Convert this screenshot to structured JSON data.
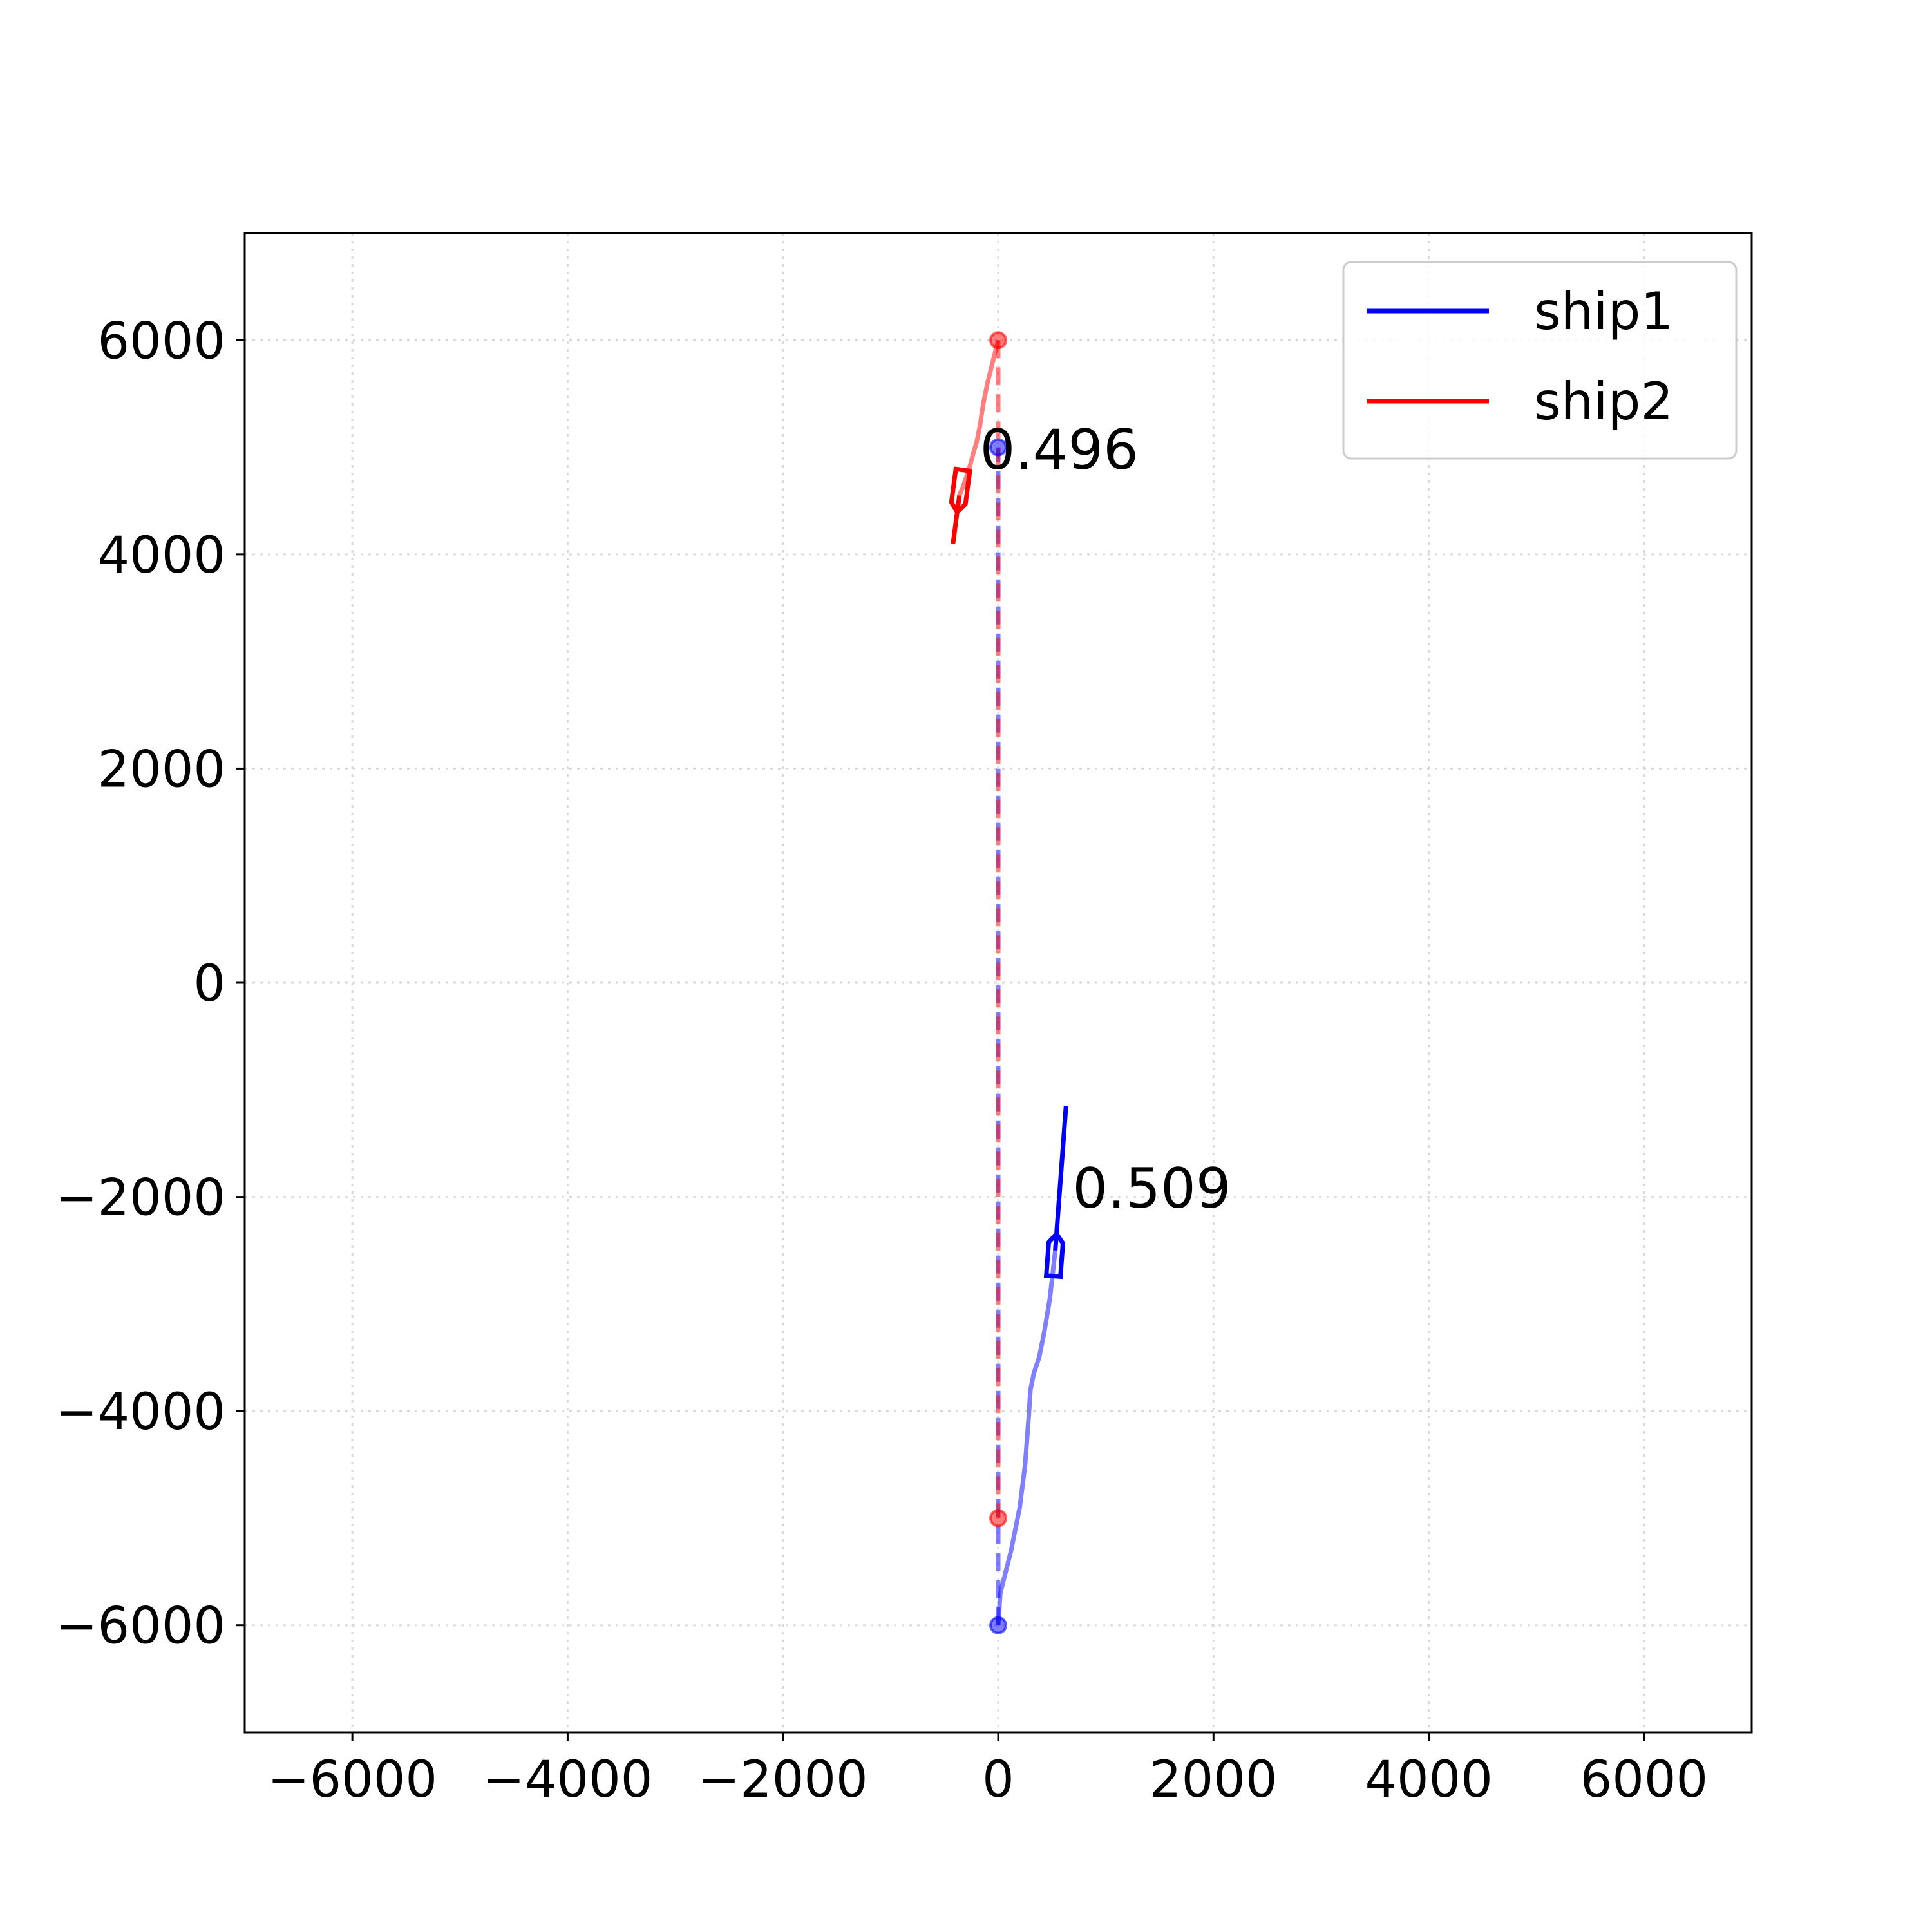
{
  "chart_data": {
    "type": "line",
    "title": "",
    "xlabel": "",
    "ylabel": "",
    "xlim": [
      -7000,
      7000
    ],
    "ylim": [
      -7000,
      7000
    ],
    "xticks": [
      -6000,
      -4000,
      -2000,
      0,
      2000,
      4000,
      6000
    ],
    "yticks": [
      -6000,
      -4000,
      -2000,
      0,
      2000,
      4000,
      6000
    ],
    "xtick_labels": [
      "−6000",
      "−4000",
      "−2000",
      "0",
      "2000",
      "4000",
      "6000"
    ],
    "ytick_labels": [
      "−6000",
      "−4000",
      "−2000",
      "0",
      "2000",
      "4000",
      "6000"
    ],
    "grid": true,
    "legend": {
      "placement": "top-right",
      "entries": [
        {
          "label": "ship1",
          "color": "#0000ff"
        },
        {
          "label": "ship2",
          "color": "#ff0000"
        }
      ]
    },
    "series": [
      {
        "name": "ship1",
        "color": "#0000ff",
        "start": [
          0,
          -6000
        ],
        "goal": [
          0,
          5000
        ],
        "planned_path": [
          [
            0,
            -6000
          ],
          [
            0,
            5000
          ]
        ],
        "trajectory": [
          [
            0,
            -6000
          ],
          [
            20,
            -5700
          ],
          [
            120,
            -5300
          ],
          [
            200,
            -4900
          ],
          [
            250,
            -4500
          ],
          [
            280,
            -4100
          ],
          [
            300,
            -3800
          ],
          [
            330,
            -3650
          ],
          [
            380,
            -3500
          ],
          [
            430,
            -3250
          ],
          [
            480,
            -2950
          ],
          [
            530,
            -2500
          ]
        ],
        "heading_line": [
          [
            530,
            -2500
          ],
          [
            630,
            -1150
          ]
        ],
        "current_position": [
          530,
          -2500
        ],
        "annotation": "0.509",
        "annotation_pos": [
          690,
          -2100
        ]
      },
      {
        "name": "ship2",
        "color": "#ff0000",
        "start": [
          0,
          6000
        ],
        "goal": [
          0,
          -5000
        ],
        "planned_path": [
          [
            0,
            6000
          ],
          [
            0,
            -5000
          ]
        ],
        "trajectory": [
          [
            0,
            6000
          ],
          [
            -50,
            5800
          ],
          [
            -100,
            5600
          ],
          [
            -140,
            5400
          ],
          [
            -170,
            5200
          ],
          [
            -200,
            5050
          ],
          [
            -230,
            4950
          ],
          [
            -270,
            4800
          ],
          [
            -320,
            4650
          ],
          [
            -360,
            4550
          ]
        ],
        "heading_line": [
          [
            -360,
            4550
          ],
          [
            -420,
            4100
          ]
        ],
        "current_position": [
          -360,
          4550
        ],
        "annotation": "0.496",
        "annotation_pos": [
          -170,
          4800
        ]
      }
    ]
  }
}
